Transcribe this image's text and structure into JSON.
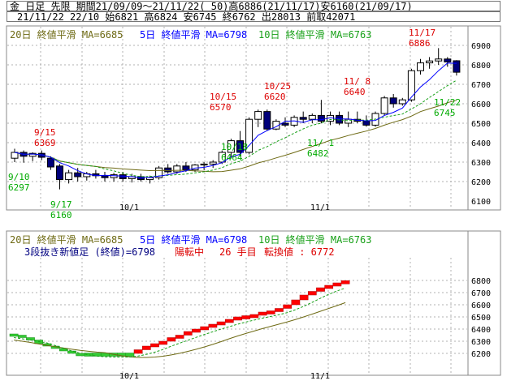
{
  "header": {
    "line1": "金 日足 先限 期間21/09/09～21/11/22( 50)高6886(21/11/17)安6160(21/09/17)",
    "line2": "21/11/22 22/10 始6821 高6824 安6745 終6762 出28013 前取42071"
  },
  "colors": {
    "up": "#ffffff",
    "down": "#00007a",
    "ma20": "#6e6a14",
    "ma5": "#0000ff",
    "ma10": "#18a018",
    "red": "#dd0000",
    "green": "#00aa00",
    "grid": "#b0b0b0",
    "brick_up": "#ff0000",
    "brick_down": "#33cc33"
  },
  "top_chart": {
    "legend": [
      {
        "text": "20日 終値平滑 MA=6685",
        "color": "#6e6a14"
      },
      {
        "text": "5日 終値平滑 MA=6798",
        "color": "#0000ff"
      },
      {
        "text": "10日 終値平滑 MA=6763",
        "color": "#18a018"
      }
    ],
    "price_ticks": [
      "6900",
      "6800",
      "6700",
      "6600",
      "6500",
      "6400",
      "6300",
      "6200",
      "6100"
    ],
    "date_ticks": [
      "10/1",
      "11/1"
    ],
    "annotations_high": [
      {
        "date": "9/15",
        "price": "6369"
      },
      {
        "date": "10/15",
        "price": "6570"
      },
      {
        "date": "10/25",
        "price": "6620"
      },
      {
        "date": "11/ 8",
        "price": "6640"
      },
      {
        "date": "11/17",
        "price": "6886"
      }
    ],
    "annotations_low": [
      {
        "date": "9/10",
        "price": "6297"
      },
      {
        "date": "9/17",
        "price": "6160"
      },
      {
        "date": "10/18",
        "price": "6464"
      },
      {
        "date": "11/ 1",
        "price": "6482"
      },
      {
        "date": "11/22",
        "price": "6745"
      }
    ]
  },
  "bottom_chart": {
    "legend": [
      {
        "text": "20日 終値平滑 MA=6685",
        "color": "#6e6a14"
      },
      {
        "text": "5日 終値平滑 MA=6798",
        "color": "#0000ff"
      },
      {
        "text": "10日 終値平滑 MA=6763",
        "color": "#18a018"
      }
    ],
    "title": "3段抜き新値足 (終値)=6798",
    "status1": "陽転中",
    "status2": "26 手目",
    "status3": "転換値 : 6772",
    "price_ticks": [
      "6800",
      "6700",
      "6600",
      "6500",
      "6400",
      "6300",
      "6200"
    ],
    "date_ticks": [
      "10/1",
      "11/1"
    ]
  },
  "chart_data": [
    {
      "type": "candlestick",
      "ylim": [
        6100,
        6900
      ],
      "candles": [
        [
          6320,
          6369,
          6300,
          6350
        ],
        [
          6350,
          6360,
          6297,
          6330
        ],
        [
          6330,
          6350,
          6305,
          6345
        ],
        [
          6345,
          6360,
          6310,
          6325
        ],
        [
          6320,
          6330,
          6260,
          6275
        ],
        [
          6280,
          6290,
          6160,
          6210
        ],
        [
          6210,
          6260,
          6190,
          6245
        ],
        [
          6245,
          6270,
          6200,
          6225
        ],
        [
          6225,
          6250,
          6205,
          6240
        ],
        [
          6240,
          6260,
          6215,
          6230
        ],
        [
          6230,
          6250,
          6200,
          6220
        ],
        [
          6220,
          6245,
          6200,
          6235
        ],
        [
          6235,
          6250,
          6200,
          6215
        ],
        [
          6215,
          6240,
          6195,
          6225
        ],
        [
          6225,
          6240,
          6200,
          6210
        ],
        [
          6210,
          6230,
          6190,
          6220
        ],
        [
          6220,
          6280,
          6210,
          6270
        ],
        [
          6270,
          6290,
          6240,
          6250
        ],
        [
          6250,
          6290,
          6240,
          6280
        ],
        [
          6280,
          6300,
          6250,
          6260
        ],
        [
          6260,
          6290,
          6250,
          6285
        ],
        [
          6285,
          6300,
          6260,
          6290
        ],
        [
          6290,
          6310,
          6270,
          6300
        ],
        [
          6300,
          6360,
          6290,
          6350
        ],
        [
          6350,
          6420,
          6320,
          6410
        ],
        [
          6410,
          6460,
          6330,
          6350
        ],
        [
          6350,
          6530,
          6340,
          6520
        ],
        [
          6520,
          6570,
          6480,
          6560
        ],
        [
          6560,
          6570,
          6460,
          6470
        ],
        [
          6470,
          6520,
          6464,
          6510
        ],
        [
          6500,
          6530,
          6480,
          6490
        ],
        [
          6490,
          6540,
          6480,
          6530
        ],
        [
          6530,
          6560,
          6500,
          6520
        ],
        [
          6520,
          6550,
          6500,
          6540
        ],
        [
          6540,
          6620,
          6500,
          6510
        ],
        [
          6510,
          6560,
          6490,
          6540
        ],
        [
          6540,
          6560,
          6490,
          6500
        ],
        [
          6500,
          6560,
          6480,
          6520
        ],
        [
          6520,
          6560,
          6500,
          6510
        ],
        [
          6510,
          6540,
          6482,
          6490
        ],
        [
          6490,
          6560,
          6482,
          6550
        ],
        [
          6550,
          6640,
          6540,
          6630
        ],
        [
          6630,
          6650,
          6580,
          6600
        ],
        [
          6600,
          6630,
          6590,
          6620
        ],
        [
          6620,
          6780,
          6610,
          6770
        ],
        [
          6770,
          6830,
          6750,
          6810
        ],
        [
          6810,
          6840,
          6780,
          6820
        ],
        [
          6820,
          6886,
          6800,
          6830
        ],
        [
          6830,
          6840,
          6790,
          6815
        ],
        [
          6821,
          6824,
          6745,
          6762
        ]
      ]
    },
    {
      "type": "bar",
      "series": [
        {
          "name": "陽線",
          "values": [
            6230,
            6260,
            6280,
            6300,
            6330,
            6350,
            6380,
            6400,
            6420,
            6440,
            6460,
            6480,
            6500,
            6510,
            6520,
            6540,
            6550,
            6570,
            6600,
            6640,
            6680,
            6710,
            6740,
            6760,
            6780,
            6798
          ]
        },
        {
          "name": "陰線",
          "values": [
            6350,
            6330,
            6310,
            6280,
            6260,
            6240,
            6220,
            6200,
            6190
          ]
        }
      ]
    }
  ]
}
